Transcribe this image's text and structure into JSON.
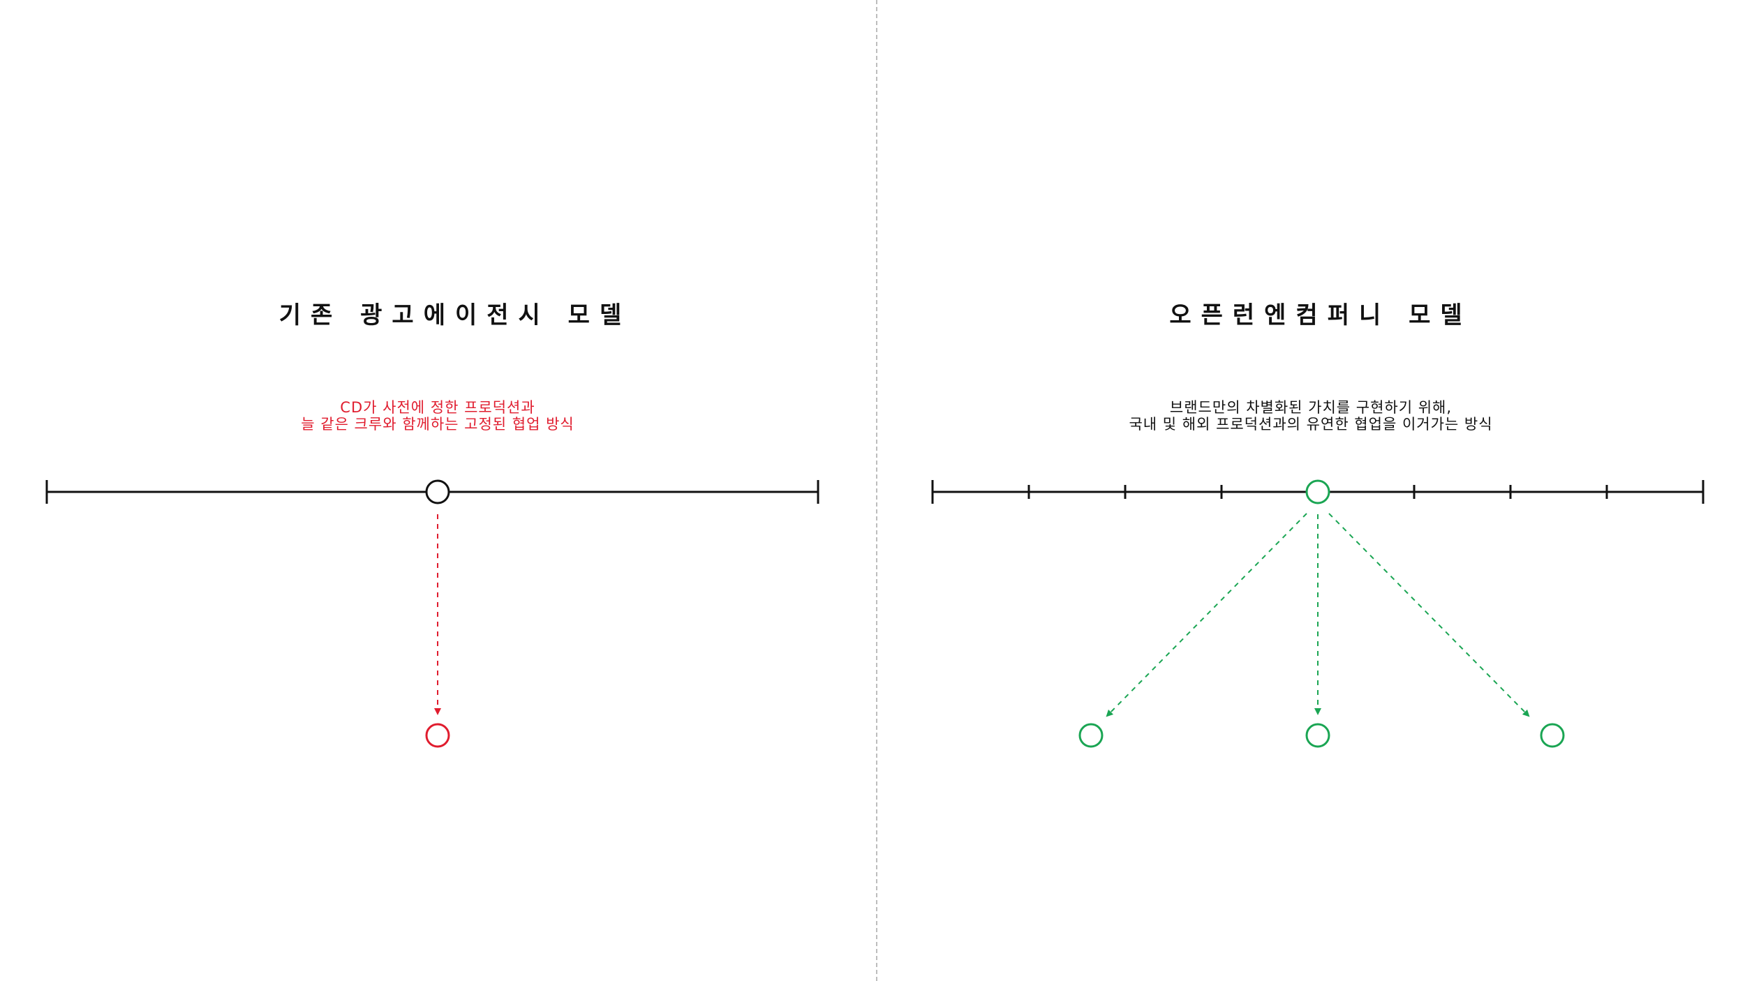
{
  "colors": {
    "line": "#111111",
    "red": "#e01c2e",
    "green": "#1aa553",
    "divider": "#bdbdbd"
  },
  "left": {
    "title": "기존 광고에이전시 모델",
    "subtitle_lines": [
      "CD가 사전에 정한 프로덕션과",
      "늘 같은 크루와 함께하는 고정된 협업 방식"
    ]
  },
  "right": {
    "title": "오픈런엔컴퍼니 모델",
    "subtitle_lines": [
      "브랜드만의 차별화된 가치를 구현하기 위해,",
      "국내 및 해외 프로덕션과의 유연한 협업을 이거가는 방식"
    ]
  }
}
